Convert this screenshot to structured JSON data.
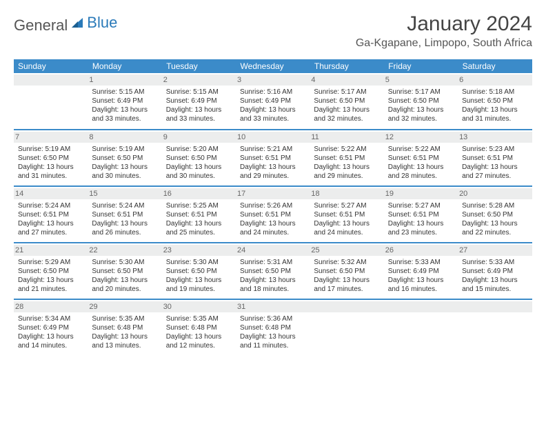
{
  "brand": {
    "part1": "General",
    "part2": "Blue"
  },
  "title": "January 2024",
  "location": "Ga-Kgapane, Limpopo, South Africa",
  "colors": {
    "header_bg": "#3b8bc9",
    "header_text": "#ffffff",
    "daynum_bg": "#eceded",
    "border": "#3b8bc9",
    "body_text": "#333333",
    "title_text": "#444444"
  },
  "daysOfWeek": [
    "Sunday",
    "Monday",
    "Tuesday",
    "Wednesday",
    "Thursday",
    "Friday",
    "Saturday"
  ],
  "weeks": [
    [
      {
        "num": "",
        "lines": []
      },
      {
        "num": "1",
        "lines": [
          "Sunrise: 5:15 AM",
          "Sunset: 6:49 PM",
          "Daylight: 13 hours",
          "and 33 minutes."
        ]
      },
      {
        "num": "2",
        "lines": [
          "Sunrise: 5:15 AM",
          "Sunset: 6:49 PM",
          "Daylight: 13 hours",
          "and 33 minutes."
        ]
      },
      {
        "num": "3",
        "lines": [
          "Sunrise: 5:16 AM",
          "Sunset: 6:49 PM",
          "Daylight: 13 hours",
          "and 33 minutes."
        ]
      },
      {
        "num": "4",
        "lines": [
          "Sunrise: 5:17 AM",
          "Sunset: 6:50 PM",
          "Daylight: 13 hours",
          "and 32 minutes."
        ]
      },
      {
        "num": "5",
        "lines": [
          "Sunrise: 5:17 AM",
          "Sunset: 6:50 PM",
          "Daylight: 13 hours",
          "and 32 minutes."
        ]
      },
      {
        "num": "6",
        "lines": [
          "Sunrise: 5:18 AM",
          "Sunset: 6:50 PM",
          "Daylight: 13 hours",
          "and 31 minutes."
        ]
      }
    ],
    [
      {
        "num": "7",
        "lines": [
          "Sunrise: 5:19 AM",
          "Sunset: 6:50 PM",
          "Daylight: 13 hours",
          "and 31 minutes."
        ]
      },
      {
        "num": "8",
        "lines": [
          "Sunrise: 5:19 AM",
          "Sunset: 6:50 PM",
          "Daylight: 13 hours",
          "and 30 minutes."
        ]
      },
      {
        "num": "9",
        "lines": [
          "Sunrise: 5:20 AM",
          "Sunset: 6:50 PM",
          "Daylight: 13 hours",
          "and 30 minutes."
        ]
      },
      {
        "num": "10",
        "lines": [
          "Sunrise: 5:21 AM",
          "Sunset: 6:51 PM",
          "Daylight: 13 hours",
          "and 29 minutes."
        ]
      },
      {
        "num": "11",
        "lines": [
          "Sunrise: 5:22 AM",
          "Sunset: 6:51 PM",
          "Daylight: 13 hours",
          "and 29 minutes."
        ]
      },
      {
        "num": "12",
        "lines": [
          "Sunrise: 5:22 AM",
          "Sunset: 6:51 PM",
          "Daylight: 13 hours",
          "and 28 minutes."
        ]
      },
      {
        "num": "13",
        "lines": [
          "Sunrise: 5:23 AM",
          "Sunset: 6:51 PM",
          "Daylight: 13 hours",
          "and 27 minutes."
        ]
      }
    ],
    [
      {
        "num": "14",
        "lines": [
          "Sunrise: 5:24 AM",
          "Sunset: 6:51 PM",
          "Daylight: 13 hours",
          "and 27 minutes."
        ]
      },
      {
        "num": "15",
        "lines": [
          "Sunrise: 5:24 AM",
          "Sunset: 6:51 PM",
          "Daylight: 13 hours",
          "and 26 minutes."
        ]
      },
      {
        "num": "16",
        "lines": [
          "Sunrise: 5:25 AM",
          "Sunset: 6:51 PM",
          "Daylight: 13 hours",
          "and 25 minutes."
        ]
      },
      {
        "num": "17",
        "lines": [
          "Sunrise: 5:26 AM",
          "Sunset: 6:51 PM",
          "Daylight: 13 hours",
          "and 24 minutes."
        ]
      },
      {
        "num": "18",
        "lines": [
          "Sunrise: 5:27 AM",
          "Sunset: 6:51 PM",
          "Daylight: 13 hours",
          "and 24 minutes."
        ]
      },
      {
        "num": "19",
        "lines": [
          "Sunrise: 5:27 AM",
          "Sunset: 6:51 PM",
          "Daylight: 13 hours",
          "and 23 minutes."
        ]
      },
      {
        "num": "20",
        "lines": [
          "Sunrise: 5:28 AM",
          "Sunset: 6:50 PM",
          "Daylight: 13 hours",
          "and 22 minutes."
        ]
      }
    ],
    [
      {
        "num": "21",
        "lines": [
          "Sunrise: 5:29 AM",
          "Sunset: 6:50 PM",
          "Daylight: 13 hours",
          "and 21 minutes."
        ]
      },
      {
        "num": "22",
        "lines": [
          "Sunrise: 5:30 AM",
          "Sunset: 6:50 PM",
          "Daylight: 13 hours",
          "and 20 minutes."
        ]
      },
      {
        "num": "23",
        "lines": [
          "Sunrise: 5:30 AM",
          "Sunset: 6:50 PM",
          "Daylight: 13 hours",
          "and 19 minutes."
        ]
      },
      {
        "num": "24",
        "lines": [
          "Sunrise: 5:31 AM",
          "Sunset: 6:50 PM",
          "Daylight: 13 hours",
          "and 18 minutes."
        ]
      },
      {
        "num": "25",
        "lines": [
          "Sunrise: 5:32 AM",
          "Sunset: 6:50 PM",
          "Daylight: 13 hours",
          "and 17 minutes."
        ]
      },
      {
        "num": "26",
        "lines": [
          "Sunrise: 5:33 AM",
          "Sunset: 6:49 PM",
          "Daylight: 13 hours",
          "and 16 minutes."
        ]
      },
      {
        "num": "27",
        "lines": [
          "Sunrise: 5:33 AM",
          "Sunset: 6:49 PM",
          "Daylight: 13 hours",
          "and 15 minutes."
        ]
      }
    ],
    [
      {
        "num": "28",
        "lines": [
          "Sunrise: 5:34 AM",
          "Sunset: 6:49 PM",
          "Daylight: 13 hours",
          "and 14 minutes."
        ]
      },
      {
        "num": "29",
        "lines": [
          "Sunrise: 5:35 AM",
          "Sunset: 6:48 PM",
          "Daylight: 13 hours",
          "and 13 minutes."
        ]
      },
      {
        "num": "30",
        "lines": [
          "Sunrise: 5:35 AM",
          "Sunset: 6:48 PM",
          "Daylight: 13 hours",
          "and 12 minutes."
        ]
      },
      {
        "num": "31",
        "lines": [
          "Sunrise: 5:36 AM",
          "Sunset: 6:48 PM",
          "Daylight: 13 hours",
          "and 11 minutes."
        ]
      },
      {
        "num": "",
        "lines": []
      },
      {
        "num": "",
        "lines": []
      },
      {
        "num": "",
        "lines": []
      }
    ]
  ]
}
